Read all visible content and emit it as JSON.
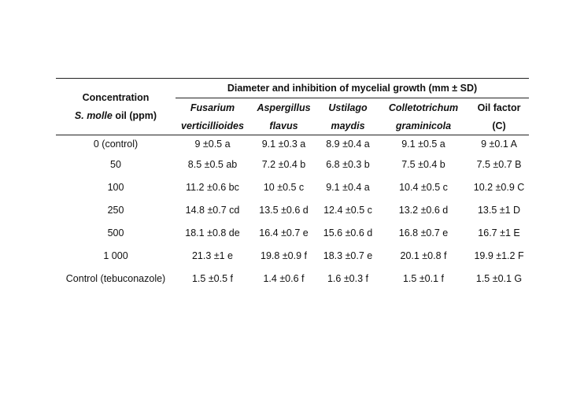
{
  "table": {
    "group_header": "Diameter and inhibition of mycelial growth (mm ± SD)",
    "concentration_header": {
      "line1": "Concentration",
      "line2_italic": "S. molle",
      "line2_rest": " oil (ppm)"
    },
    "columns": [
      {
        "line1": "Fusarium",
        "line2": "verticillioides",
        "italic": true
      },
      {
        "line1": "Aspergillus",
        "line2": "flavus",
        "italic": true
      },
      {
        "line1": "Ustilago",
        "line2": "maydis",
        "italic": true
      },
      {
        "line1": "Colletotrichum",
        "line2": "graminicola",
        "italic": true
      },
      {
        "line1": "Oil factor",
        "line2": "(C)",
        "italic": false
      }
    ],
    "rows": [
      {
        "concentration": "0 (control)",
        "values": [
          "9 ±0.5 a",
          "9.1 ±0.3 a",
          "8.9 ±0.4 a",
          "9.1 ±0.5 a",
          "9 ±0.1 A"
        ]
      },
      {
        "concentration": "50",
        "values": [
          "8.5 ±0.5 ab",
          "7.2 ±0.4 b",
          "6.8 ±0.3 b",
          "7.5 ±0.4 b",
          "7.5 ±0.7 B"
        ]
      },
      {
        "concentration": "100",
        "values": [
          "11.2 ±0.6 bc",
          "10 ±0.5 c",
          "9.1 ±0.4 a",
          "10.4 ±0.5 c",
          "10.2 ±0.9 C"
        ]
      },
      {
        "concentration": "250",
        "values": [
          "14.8 ±0.7 cd",
          "13.5 ±0.6 d",
          "12.4 ±0.5 c",
          "13.2 ±0.6 d",
          "13.5 ±1 D"
        ]
      },
      {
        "concentration": "500",
        "values": [
          "18.1 ±0.8 de",
          "16.4 ±0.7 e",
          "15.6 ±0.6 d",
          "16.8 ±0.7 e",
          "16.7 ±1 E"
        ]
      },
      {
        "concentration": "1 000",
        "values": [
          "21.3 ±1 e",
          "19.8 ±0.9 f",
          "18.3 ±0.7 e",
          "20.1 ±0.8 f",
          "19.9 ±1.2 F"
        ]
      },
      {
        "concentration": "Control (tebuconazole)",
        "values": [
          "1.5 ±0.5 f",
          "1.4 ±0.6 f",
          "1.6 ±0.3 f",
          "1.5 ±0.1 f",
          "1.5 ±0.1 G"
        ]
      }
    ]
  }
}
